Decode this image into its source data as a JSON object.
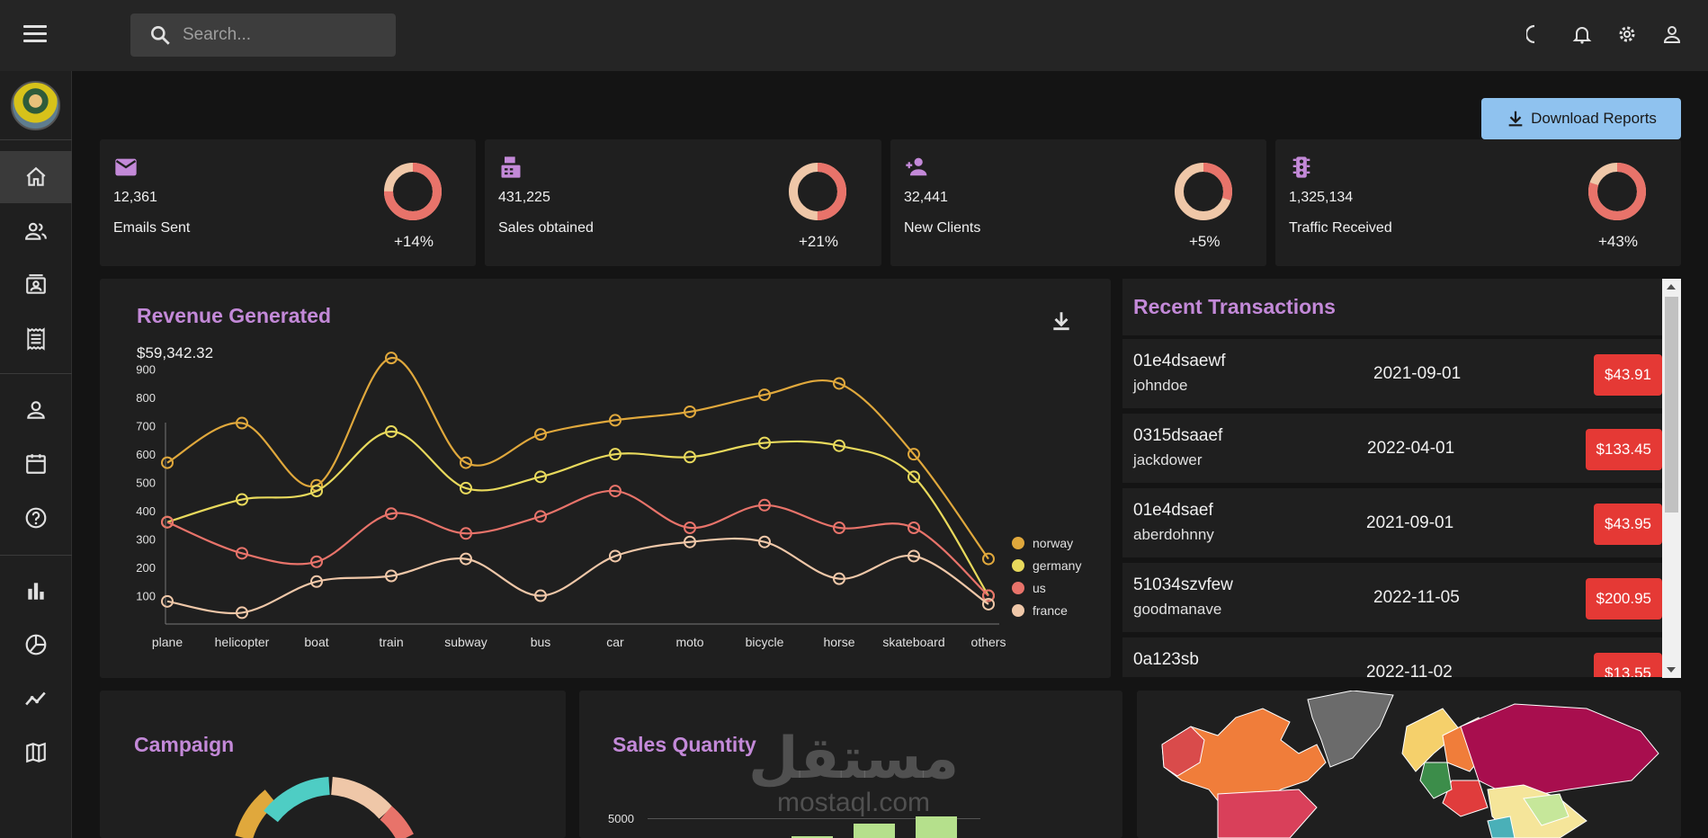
{
  "topbar": {
    "search_placeholder": "Search...",
    "icons": [
      "menu-icon",
      "search-icon",
      "moon-icon",
      "bell-icon",
      "gear-icon",
      "person-icon"
    ]
  },
  "sidebar": {
    "items": [
      {
        "icon": "home-icon",
        "active": true
      },
      {
        "icon": "team-icon"
      },
      {
        "icon": "contacts-icon"
      },
      {
        "icon": "receipt-icon"
      },
      {
        "icon": "person-outline-icon"
      },
      {
        "icon": "calendar-icon"
      },
      {
        "icon": "help-icon"
      },
      {
        "icon": "bar-chart-icon"
      },
      {
        "icon": "pie-chart-icon"
      },
      {
        "icon": "timeline-icon"
      },
      {
        "icon": "map-icon"
      }
    ]
  },
  "header": {
    "download_label": "Download Reports"
  },
  "stats": [
    {
      "icon": "email-icon",
      "value": "12,361",
      "label": "Emails Sent",
      "change": "+14%",
      "progress": 0.75
    },
    {
      "icon": "point-of-sale-icon",
      "value": "431,225",
      "label": "Sales obtained",
      "change": "+21%",
      "progress": 0.5
    },
    {
      "icon": "person-add-icon",
      "value": "32,441",
      "label": "New Clients",
      "change": "+5%",
      "progress": 0.3
    },
    {
      "icon": "traffic-icon",
      "value": "1,325,134",
      "label": "Traffic Received",
      "change": "+43%",
      "progress": 0.8
    }
  ],
  "revenue": {
    "title": "Revenue Generated",
    "amount": "$59,342.32"
  },
  "chart_data": {
    "type": "line",
    "categories": [
      "plane",
      "helicopter",
      "boat",
      "train",
      "subway",
      "bus",
      "car",
      "moto",
      "bicycle",
      "horse",
      "skateboard",
      "others"
    ],
    "yticks": [
      100,
      200,
      300,
      400,
      500,
      600,
      700,
      800,
      900
    ],
    "ylim": [
      0,
      950
    ],
    "legend_position": "right",
    "grid": false,
    "series": [
      {
        "name": "norway",
        "color": "#e0a83c",
        "values": [
          570,
          710,
          490,
          940,
          570,
          670,
          720,
          750,
          810,
          850,
          600,
          230
        ]
      },
      {
        "name": "germany",
        "color": "#e8d95c",
        "values": [
          360,
          440,
          470,
          680,
          480,
          520,
          600,
          590,
          640,
          630,
          520,
          100
        ]
      },
      {
        "name": "us",
        "color": "#e8736a",
        "values": [
          360,
          250,
          220,
          390,
          320,
          380,
          470,
          340,
          420,
          340,
          340,
          100
        ]
      },
      {
        "name": "france",
        "color": "#efc7a8",
        "values": [
          80,
          40,
          150,
          170,
          230,
          100,
          240,
          290,
          290,
          160,
          240,
          70
        ]
      }
    ]
  },
  "transactions": {
    "title": "Recent Transactions",
    "rows": [
      {
        "id": "01e4dsaewf",
        "user": "johndoe",
        "date": "2021-09-01",
        "amount": "$43.91"
      },
      {
        "id": "0315dsaaef",
        "user": "jackdower",
        "date": "2022-04-01",
        "amount": "$133.45"
      },
      {
        "id": "01e4dsaef",
        "user": "aberdohnny",
        "date": "2021-09-01",
        "amount": "$43.95"
      },
      {
        "id": "51034szvfew",
        "user": "goodmanave",
        "date": "2022-11-05",
        "amount": "$200.95"
      },
      {
        "id": "0a123sb",
        "user": "",
        "date": "2022-11-02",
        "amount": "$13.55"
      }
    ]
  },
  "campaign": {
    "title": "Campaign"
  },
  "sales_quantity": {
    "title": "Sales Quantity",
    "ytick": "5000"
  },
  "watermark": {
    "arabic": "مستقل",
    "latin": "mostaql.com"
  },
  "colors": {
    "accent": "#c389d8",
    "ring_a": "#e8736a",
    "ring_b": "#efc7a8",
    "badge": "#e53935",
    "button": "#8fc2ef"
  }
}
